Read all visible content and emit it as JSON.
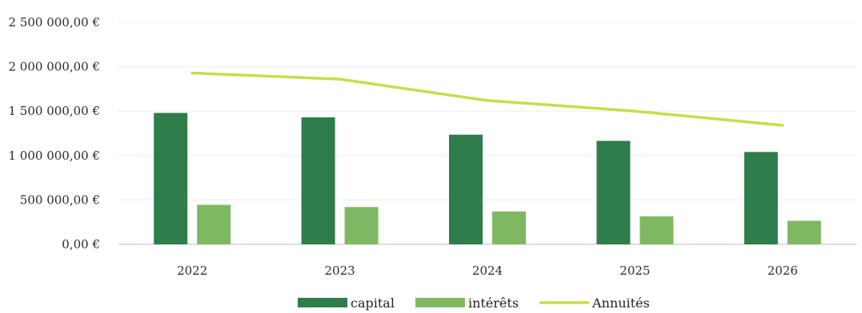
{
  "chart_data": {
    "type": "bar",
    "categories": [
      "2022",
      "2023",
      "2024",
      "2025",
      "2026"
    ],
    "series": [
      {
        "name": "capital",
        "kind": "bar",
        "color": "#2e7d4a",
        "values": [
          1480000,
          1430000,
          1235000,
          1165000,
          1040000
        ]
      },
      {
        "name": "intérêts",
        "kind": "bar",
        "color": "#7fb863",
        "values": [
          445000,
          420000,
          370000,
          315000,
          265000
        ]
      },
      {
        "name": "Annuités",
        "kind": "line",
        "color": "#c8dc4a",
        "values": [
          1930000,
          1860000,
          1620000,
          1500000,
          1340000
        ]
      }
    ],
    "y_ticks": [
      {
        "value": 0,
        "label": "0,00 €"
      },
      {
        "value": 500000,
        "label": "500 000,00 €"
      },
      {
        "value": 1000000,
        "label": "1 000 000,00 €"
      },
      {
        "value": 1500000,
        "label": "1 500 000,00 €"
      },
      {
        "value": 2000000,
        "label": "2 000 000,00 €"
      },
      {
        "value": 2500000,
        "label": "2 500 000,00 €"
      }
    ],
    "ylim": [
      0,
      2500000
    ],
    "grid": true,
    "legend_position": "bottom",
    "gridline_color": "#eeeeee",
    "axis_color": "#bfbfbf"
  }
}
